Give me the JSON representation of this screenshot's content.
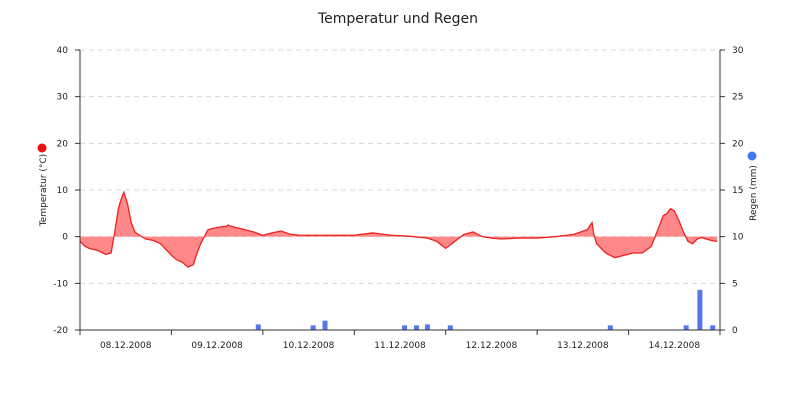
{
  "chart_data": {
    "type": "area",
    "title": "Temperatur und Regen",
    "grid": true,
    "x_tick_labels": [
      "08.12.2008",
      "09.12.2008",
      "10.12.2008",
      "11.12.2008",
      "12.12.2008",
      "13.12.2008",
      "14.12.2008"
    ],
    "x_range_days": [
      0,
      7
    ],
    "left_axis": {
      "label": "Temperatur (°C)",
      "ylim": [
        -20,
        40
      ],
      "ticks": [
        -20,
        -10,
        0,
        10,
        20,
        30,
        40
      ],
      "marker_color": "#ee1111"
    },
    "right_axis": {
      "label": "Regen (mm)",
      "ylim": [
        0,
        30
      ],
      "ticks": [
        0,
        5,
        10,
        15,
        20,
        25,
        30
      ],
      "marker_color": "#4477ee"
    },
    "series": [
      {
        "name": "Temperatur (°C)",
        "axis": "left",
        "color": "#ee2222",
        "fill": "#ff8888",
        "x": [
          0.0,
          0.05,
          0.1,
          0.2,
          0.28,
          0.34,
          0.38,
          0.42,
          0.45,
          0.48,
          0.52,
          0.56,
          0.6,
          0.65,
          0.72,
          0.8,
          0.88,
          1.0,
          1.06,
          1.12,
          1.18,
          1.24,
          1.28,
          1.32,
          1.36,
          1.4,
          1.5,
          1.6,
          1.62,
          1.64,
          1.7,
          1.8,
          1.9,
          2.0,
          2.1,
          2.2,
          2.3,
          2.4,
          2.5,
          2.6,
          3.0,
          3.2,
          3.4,
          3.6,
          3.8,
          3.9,
          4.0,
          4.1,
          4.2,
          4.3,
          4.4,
          4.5,
          4.6,
          4.8,
          5.0,
          5.2,
          5.4,
          5.55,
          5.6,
          5.62,
          5.65,
          5.75,
          5.85,
          5.95,
          6.05,
          6.15,
          6.22,
          6.25,
          6.3,
          6.35,
          6.38,
          6.42,
          6.46,
          6.5,
          6.55,
          6.6,
          6.65,
          6.7,
          6.75,
          6.8,
          6.9,
          6.97
        ],
        "values": [
          -1.0,
          -2.0,
          -2.5,
          -3.0,
          -3.8,
          -3.5,
          1.0,
          6.0,
          8.0,
          9.5,
          7.0,
          3.0,
          1.0,
          0.3,
          -0.5,
          -0.8,
          -1.5,
          -4.0,
          -5.0,
          -5.5,
          -6.5,
          -6.0,
          -3.5,
          -1.5,
          0.0,
          1.5,
          2.0,
          2.2,
          2.5,
          2.3,
          2.0,
          1.5,
          1.0,
          0.3,
          0.8,
          1.2,
          0.5,
          0.3,
          0.3,
          0.3,
          0.3,
          0.8,
          0.3,
          0.1,
          -0.3,
          -1.0,
          -2.5,
          -1.0,
          0.5,
          1.0,
          0.0,
          -0.3,
          -0.5,
          -0.3,
          -0.3,
          0.0,
          0.5,
          1.5,
          3.0,
          0.5,
          -1.5,
          -3.5,
          -4.5,
          -4.0,
          -3.5,
          -3.5,
          -2.5,
          -2.0,
          0.5,
          3.0,
          4.5,
          5.0,
          6.0,
          5.5,
          3.5,
          1.0,
          -1.0,
          -1.5,
          -0.5,
          -0.2,
          -0.8,
          -1.0
        ]
      },
      {
        "name": "Regen (mm)",
        "axis": "right",
        "type": "bar",
        "color": "#5577ee",
        "x": [
          1.95,
          2.55,
          2.68,
          3.55,
          3.68,
          3.8,
          4.05,
          5.8,
          6.63,
          6.78,
          6.92
        ],
        "values": [
          0.6,
          0.5,
          1.0,
          0.5,
          0.5,
          0.6,
          0.5,
          0.5,
          0.5,
          4.3,
          0.5
        ]
      }
    ]
  }
}
